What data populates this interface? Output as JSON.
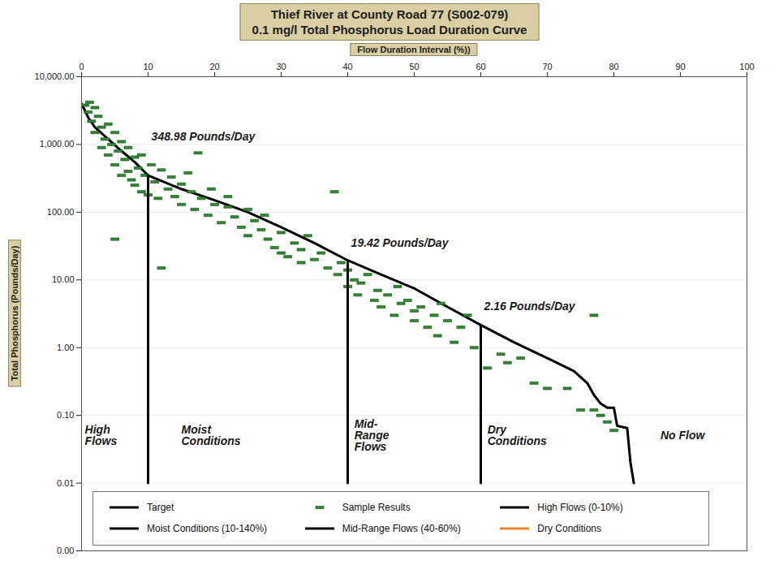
{
  "chart_data": {
    "type": "line",
    "title": "Thief River at County Road 77 (S002-079)",
    "subtitle": "0.1 mg/l Total Phosphorus Load Duration Curve",
    "x_label": "Flow Duration Interval (%))",
    "y_label": "Total Phosphorus (Pounds/Day)",
    "log": "y",
    "grid": true,
    "legend": "bottom",
    "xlim": [
      0,
      100
    ],
    "xticks": [
      0,
      10,
      20,
      30,
      40,
      50,
      60,
      70,
      80,
      90,
      100
    ],
    "ylim": [
      0.001,
      10000
    ],
    "yticks": [
      {
        "value": 10000,
        "label": "10,000.00"
      },
      {
        "value": 1000,
        "label": "1,000.00"
      },
      {
        "value": 100,
        "label": "100.00"
      },
      {
        "value": 10,
        "label": "10.00"
      },
      {
        "value": 1,
        "label": "1.00"
      },
      {
        "value": 0.1,
        "label": "0.10"
      },
      {
        "value": 0.01,
        "label": "0.01"
      },
      {
        "value": 0.001,
        "label": "0.00"
      }
    ],
    "series": [
      {
        "name": "Target",
        "type": "line",
        "color": "#000000",
        "line_style": "solid",
        "x": [
          0,
          1,
          2,
          4,
          6,
          8,
          10,
          15,
          20,
          25,
          30,
          35,
          40,
          45,
          50,
          55,
          60,
          65,
          70,
          74,
          76,
          77,
          78,
          79,
          80,
          80.5,
          82,
          82.5,
          83
        ],
        "values": [
          4000,
          2500,
          1800,
          1200,
          800,
          550,
          348.98,
          220,
          150,
          100,
          60,
          35,
          19.42,
          12,
          7.5,
          4,
          2.16,
          1.2,
          0.7,
          0.45,
          0.3,
          0.2,
          0.15,
          0.13,
          0.13,
          0.07,
          0.065,
          0.02,
          0.01
        ]
      },
      {
        "name": "Sample Results",
        "type": "scatter",
        "color": "#2e8b2e",
        "marker": "dash",
        "x": [
          0.5,
          1,
          1.2,
          1.5,
          2,
          2,
          2.5,
          3,
          3,
          3.5,
          4,
          4,
          4.5,
          5,
          5,
          5,
          5.5,
          6,
          6,
          6.5,
          7,
          7,
          7.5,
          8,
          8,
          8.5,
          9,
          9,
          9.5,
          10,
          10.5,
          11,
          11.5,
          12,
          12,
          13,
          13.5,
          14,
          15,
          15,
          16,
          16.5,
          17,
          17.5,
          18,
          19,
          19.5,
          20,
          21,
          22,
          22,
          23,
          24,
          25,
          25,
          26,
          27,
          27.5,
          28,
          29,
          30,
          30,
          31,
          32,
          33,
          33,
          34,
          35,
          36,
          37,
          38,
          38.5,
          39,
          40,
          40,
          41,
          41.5,
          42,
          43,
          44,
          44.5,
          45,
          46,
          47,
          47.5,
          48,
          49,
          50,
          50,
          51,
          52,
          53,
          53.5,
          54,
          55,
          56,
          57,
          58,
          59,
          61,
          63,
          64,
          66,
          68,
          70,
          73,
          75,
          77,
          77,
          78,
          79,
          80
        ],
        "values": [
          3800,
          3000,
          4200,
          2200,
          3500,
          1500,
          2600,
          1800,
          900,
          1200,
          2000,
          700,
          1000,
          40,
          1500,
          500,
          800,
          350,
          1100,
          600,
          900,
          400,
          300,
          650,
          250,
          450,
          200,
          700,
          350,
          180,
          500,
          280,
          160,
          15,
          420,
          220,
          330,
          170,
          260,
          130,
          380,
          200,
          110,
          750,
          160,
          90,
          220,
          130,
          70,
          120,
          170,
          85,
          60,
          110,
          45,
          75,
          55,
          90,
          40,
          30,
          50,
          25,
          22,
          35,
          18,
          28,
          45,
          20,
          25,
          15,
          200,
          12,
          18,
          8,
          14,
          10,
          6,
          9,
          12,
          5,
          7,
          4,
          6,
          3,
          8,
          4.5,
          5,
          2.5,
          3.5,
          4,
          2,
          3,
          1.5,
          4.5,
          2.5,
          1.2,
          2,
          3,
          1,
          0.5,
          0.8,
          0.6,
          0.7,
          0.3,
          0.25,
          0.25,
          0.12,
          3,
          0.12,
          0.1,
          0.08,
          0.06
        ]
      },
      {
        "name": "High Flows (0-10%)",
        "type": "line",
        "color": "#000000",
        "line_style": "solid",
        "x": [
          10,
          10
        ],
        "values": [
          348.98,
          0.01
        ]
      },
      {
        "name": "Moist Conditions (10-140%)",
        "type": "line",
        "color": "#000000",
        "line_style": "solid",
        "x": [
          40,
          40
        ],
        "values": [
          19.42,
          0.01
        ]
      },
      {
        "name": "Mid-Range Flows (40-60%)",
        "type": "line",
        "color": "#000000",
        "line_style": "solid",
        "x": [
          60,
          60
        ],
        "values": [
          2.16,
          0.01
        ]
      },
      {
        "name": "Dry Conditions",
        "type": "line",
        "color": "#e8862a",
        "line_style": "solid",
        "x": [],
        "values": []
      }
    ],
    "annotations": [
      {
        "text": "348.98 Pounds/Day",
        "x": 10.5,
        "y": 1300
      },
      {
        "text": "19.42 Pounds/Day",
        "x": 40.5,
        "y": 35
      },
      {
        "text": "2.16 Pounds/Day",
        "x": 60.5,
        "y": 4
      }
    ],
    "zone_labels": [
      {
        "text": "High Flows",
        "x": 0.5,
        "y": 0.05
      },
      {
        "text": "Moist Conditions",
        "x": 15,
        "y": 0.05
      },
      {
        "text": "Mid-Range Flows",
        "x": 41,
        "y": 0.05
      },
      {
        "text": "Dry Conditions",
        "x": 61,
        "y": 0.05
      },
      {
        "text": "No Flow",
        "x": 87,
        "y": 0.05
      }
    ]
  }
}
